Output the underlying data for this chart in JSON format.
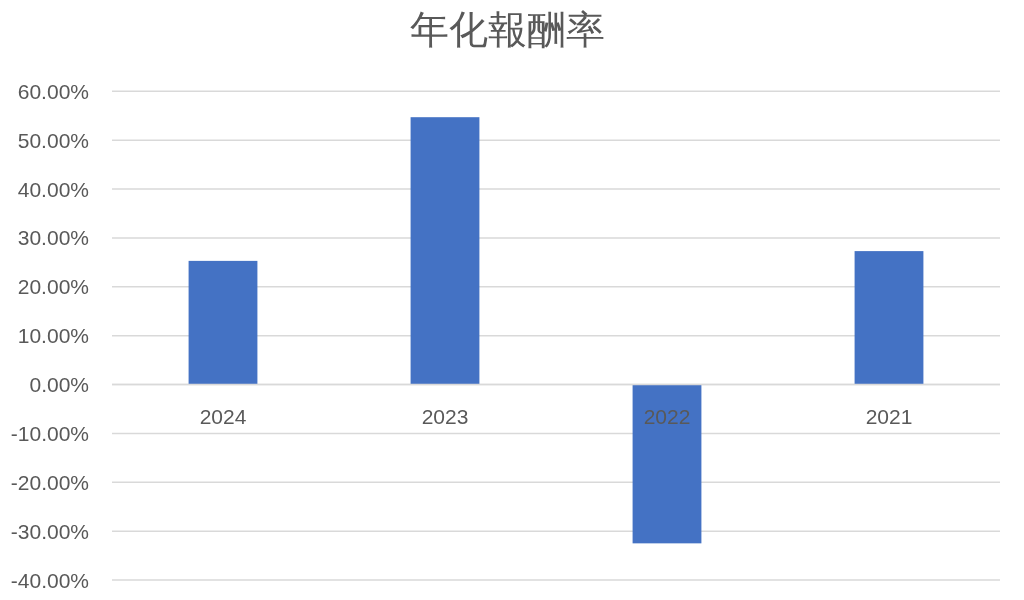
{
  "chart_data": {
    "type": "bar",
    "title": "年化報酬率",
    "categories": [
      "2024",
      "2023",
      "2022",
      "2021"
    ],
    "values": [
      25.3,
      54.7,
      -32.5,
      27.3
    ],
    "color": "#4472c4",
    "ylim": [
      -40,
      60
    ],
    "yticks": [
      {
        "value": -40,
        "label": "-40.00%"
      },
      {
        "value": -30,
        "label": "-30.00%"
      },
      {
        "value": -20,
        "label": "-20.00%"
      },
      {
        "value": -10,
        "label": "-10.00%"
      },
      {
        "value": 0,
        "label": "0.00%"
      },
      {
        "value": 10,
        "label": "10.00%"
      },
      {
        "value": 20,
        "label": "20.00%"
      },
      {
        "value": 30,
        "label": "30.00%"
      },
      {
        "value": 40,
        "label": "40.00%"
      },
      {
        "value": 50,
        "label": "50.00%"
      },
      {
        "value": 60,
        "label": "60.00%"
      }
    ],
    "grid": "y"
  }
}
